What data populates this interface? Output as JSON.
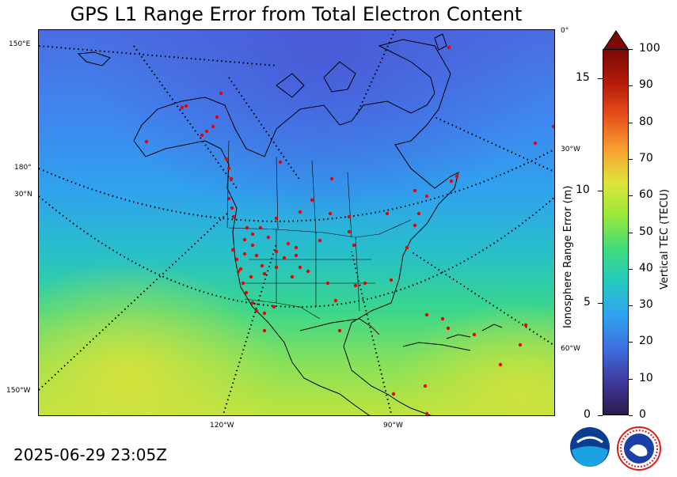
{
  "title": "GPS L1 Range Error from Total Electron Content",
  "timestamp": "2025-06-29 23:05Z",
  "map": {
    "grid_labels": {
      "lon_150e": "150°E",
      "lon_180": "180°",
      "lat_30n": "30°N",
      "lon_150w": "150°W",
      "lon_120w": "120°W",
      "lon_90w": "90°W",
      "lon_0": "0°",
      "lon_30w": "30°W",
      "lon_60w": "60°W"
    },
    "station_marker_color": "#ee0000"
  },
  "range_axis": {
    "label": "Ionosphere Range Error (m)",
    "ticks": [
      "0",
      "5",
      "10",
      "15"
    ],
    "range": [
      0,
      16.3
    ]
  },
  "colorbar": {
    "label": "Vertical TEC (TECU)",
    "ticks": [
      "0",
      "10",
      "20",
      "30",
      "40",
      "50",
      "60",
      "70",
      "80",
      "90",
      "100"
    ],
    "range": [
      0,
      100
    ],
    "extend": "max",
    "colors": [
      "#2d1a4d",
      "#3e3a9c",
      "#3f6fe0",
      "#2fa3f0",
      "#23c9c0",
      "#3fdc7a",
      "#98e83a",
      "#dfe43a",
      "#f7a030",
      "#e8501c",
      "#b51a0a",
      "#7a0a04"
    ]
  }
}
